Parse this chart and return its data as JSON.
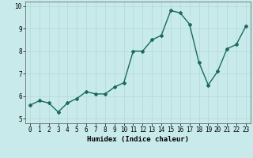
{
  "x": [
    0,
    1,
    2,
    3,
    4,
    5,
    6,
    7,
    8,
    9,
    10,
    11,
    12,
    13,
    14,
    15,
    16,
    17,
    18,
    19,
    20,
    21,
    22,
    23
  ],
  "y": [
    5.6,
    5.8,
    5.7,
    5.3,
    5.7,
    5.9,
    6.2,
    6.1,
    6.1,
    6.4,
    6.6,
    8.0,
    8.0,
    8.5,
    8.7,
    9.8,
    9.7,
    9.2,
    7.5,
    6.5,
    7.1,
    8.1,
    8.3,
    9.1
  ],
  "line_color": "#1a6b5a",
  "marker": "D",
  "marker_size": 2,
  "bg_color": "#c8eaea",
  "grid_color": "#b0d8d8",
  "xlabel": "Humidex (Indice chaleur)",
  "xlim": [
    -0.5,
    23.5
  ],
  "ylim": [
    4.8,
    10.2
  ],
  "yticks": [
    5,
    6,
    7,
    8,
    9,
    10
  ],
  "xticks": [
    0,
    1,
    2,
    3,
    4,
    5,
    6,
    7,
    8,
    9,
    10,
    11,
    12,
    13,
    14,
    15,
    16,
    17,
    18,
    19,
    20,
    21,
    22,
    23
  ],
  "tick_fontsize": 5.5,
  "xlabel_fontsize": 6.5,
  "line_width": 1.0
}
